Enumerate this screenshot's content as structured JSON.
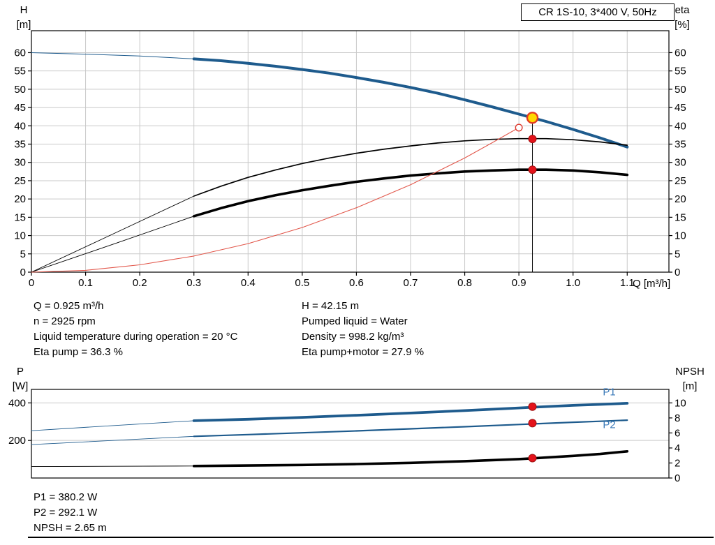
{
  "header": {
    "title_box": "CR 1S-10, 3*400 V, 50Hz"
  },
  "colors": {
    "curve_blue": "#1e5b8d",
    "label_blue": "#3a79b8",
    "curve_black": "#000000",
    "curve_red": "#e2574b",
    "dot_red": "#e3131b",
    "dot_red_edge": "#9c1111",
    "duty_yellow": "#ffd800",
    "duty_ring": "#e23b24",
    "grid": "#c9c9c9",
    "axis": "#000000"
  },
  "info": {
    "left": [
      "Q = 0.925 m³/h",
      "n = 2925 rpm",
      "Liquid temperature during operation = 20 °C",
      "Eta pump = 36.3 %"
    ],
    "right": [
      "H = 42.15 m",
      "Pumped liquid = Water",
      "Density = 998.2 kg/m³",
      "Eta pump+motor = 27.9 %"
    ],
    "bottom": [
      "P1 = 380.2 W",
      "P2 = 292.1 W",
      "NPSH = 2.65 m"
    ]
  },
  "chart_data": [
    {
      "type": "line",
      "title": "CR 1S-10, 3*400 V, 50Hz",
      "xlabel": "Q [m³/h]",
      "ylabel_left": [
        "H",
        "[m]"
      ],
      "ylabel_right": [
        "eta",
        "[%]"
      ],
      "xlim": [
        0,
        1.177
      ],
      "ylim": [
        0,
        66
      ],
      "right_ylim": [
        0,
        66
      ],
      "x_ticks": [
        0,
        0.1,
        0.2,
        0.3,
        0.4,
        0.5,
        0.6,
        0.7,
        0.8,
        0.9,
        1.0,
        1.1
      ],
      "x_tick_labels": [
        "0",
        "0.1",
        "0.2",
        "0.3",
        "0.4",
        "0.5",
        "0.6",
        "0.7",
        "0.8",
        "0.9",
        "1.0",
        "1.1"
      ],
      "y_ticks": [
        0,
        5,
        10,
        15,
        20,
        25,
        30,
        35,
        40,
        45,
        50,
        55,
        60
      ],
      "right_ticks": [
        0,
        5,
        10,
        15,
        20,
        25,
        30,
        35,
        40,
        45,
        50,
        55,
        60
      ],
      "grid": {
        "vertical": true,
        "horizontal": true
      },
      "series": [
        {
          "name": "h-curve-lead",
          "color": "#1e5b8d",
          "width": 1,
          "x": [
            0,
            0.1,
            0.2,
            0.3
          ],
          "y": [
            60,
            59.6,
            59.1,
            58.3
          ]
        },
        {
          "name": "h-curve",
          "color": "#1e5b8d",
          "width": 4,
          "x": [
            0.3,
            0.35,
            0.4,
            0.45,
            0.5,
            0.55,
            0.6,
            0.65,
            0.7,
            0.75,
            0.8,
            0.85,
            0.9,
            0.925,
            0.95,
            1.0,
            1.05,
            1.1
          ],
          "y": [
            58.3,
            57.8,
            57.1,
            56.3,
            55.4,
            54.4,
            53.2,
            51.9,
            50.5,
            48.9,
            47.1,
            45.2,
            43.2,
            42.2,
            41.2,
            39.0,
            36.7,
            34.2
          ]
        },
        {
          "name": "eta-pump-curve-lead",
          "color": "#000000",
          "width": 0.9,
          "x": [
            0,
            0.15,
            0.3
          ],
          "y": [
            0,
            10.4,
            20.8
          ]
        },
        {
          "name": "eta-pump-curve",
          "color": "#000000",
          "width": 1.7,
          "x": [
            0.3,
            0.35,
            0.4,
            0.45,
            0.5,
            0.55,
            0.6,
            0.65,
            0.7,
            0.75,
            0.8,
            0.85,
            0.9,
            0.95,
            1.0,
            1.05,
            1.1
          ],
          "y": [
            20.8,
            23.5,
            25.9,
            27.9,
            29.7,
            31.2,
            32.5,
            33.6,
            34.5,
            35.3,
            35.9,
            36.3,
            36.5,
            36.5,
            36.2,
            35.6,
            34.7
          ]
        },
        {
          "name": "eta-pump-motor-curve-lead",
          "color": "#000000",
          "width": 0.9,
          "x": [
            0,
            0.15,
            0.3
          ],
          "y": [
            0,
            7.6,
            15.3
          ]
        },
        {
          "name": "eta-pump-motor-curve",
          "color": "#000000",
          "width": 3.6,
          "x": [
            0.3,
            0.35,
            0.4,
            0.45,
            0.5,
            0.55,
            0.6,
            0.65,
            0.7,
            0.75,
            0.8,
            0.85,
            0.9,
            0.95,
            1.0,
            1.05,
            1.1
          ],
          "y": [
            15.3,
            17.5,
            19.4,
            21.0,
            22.4,
            23.6,
            24.7,
            25.6,
            26.4,
            27.0,
            27.5,
            27.8,
            28.0,
            28.0,
            27.8,
            27.3,
            26.6
          ]
        },
        {
          "name": "system-curve",
          "color": "#e2574b",
          "width": 1.1,
          "x": [
            0,
            0.1,
            0.2,
            0.3,
            0.4,
            0.5,
            0.6,
            0.7,
            0.8,
            0.85,
            0.9
          ],
          "y": [
            0,
            0.5,
            2.0,
            4.4,
            7.8,
            12.2,
            17.6,
            23.9,
            31.2,
            35.3,
            39.5
          ]
        }
      ],
      "vline": {
        "x": 0.925,
        "y0": 0,
        "y1": 42.2
      },
      "markers": [
        {
          "name": "requested-duty-marker",
          "x": 0.9,
          "y": 39.5,
          "r": 4.8,
          "fill": "#ffffff",
          "stroke": "#de3b30",
          "sw": 1.4,
          "interactable": false
        },
        {
          "name": "duty-point-marker",
          "x": 0.925,
          "y": 42.2,
          "r": 7.5,
          "fill": "#ffd800",
          "stroke": "#e23b24",
          "sw": 2.4,
          "interactable": true
        },
        {
          "name": "eta-pump-dot",
          "x": 0.925,
          "y": 36.4,
          "r": 5.5,
          "fill": "#e3131b",
          "stroke": "#9c1111",
          "sw": 1,
          "interactable": false
        },
        {
          "name": "eta-pump-motor-dot",
          "x": 0.925,
          "y": 28.0,
          "r": 5.5,
          "fill": "#e3131b",
          "stroke": "#9c1111",
          "sw": 1,
          "interactable": false
        }
      ],
      "labels": []
    },
    {
      "type": "line",
      "title": "",
      "xlabel": "",
      "ylabel_left": [
        "P",
        "[W]"
      ],
      "ylabel_right": [
        "NPSH",
        "[m]"
      ],
      "xlim": [
        0,
        1.177
      ],
      "ylim": [
        0,
        472
      ],
      "right_ylim": [
        0,
        11.8
      ],
      "x_ticks": [],
      "x_tick_labels": [],
      "y_ticks": [
        200,
        400
      ],
      "right_ticks": [
        0,
        2,
        4,
        6,
        8,
        10
      ],
      "grid": {
        "vertical": false,
        "horizontal": true
      },
      "series": [
        {
          "name": "p1-curve-lead",
          "color": "#1e5b8d",
          "width": 0.9,
          "x": [
            0,
            0.15,
            0.3
          ],
          "y": [
            252,
            279,
            305
          ]
        },
        {
          "name": "p1-curve",
          "color": "#1e5b8d",
          "width": 3.8,
          "x": [
            0.3,
            0.4,
            0.5,
            0.6,
            0.7,
            0.8,
            0.9,
            0.925,
            1.0,
            1.05,
            1.1
          ],
          "y": [
            305,
            313,
            323,
            334,
            346,
            359,
            373,
            377,
            387,
            392,
            398
          ]
        },
        {
          "name": "p2-curve-lead",
          "color": "#1e5b8d",
          "width": 0.9,
          "x": [
            0,
            0.15,
            0.3
          ],
          "y": [
            178,
            200,
            222
          ]
        },
        {
          "name": "p2-curve",
          "color": "#1e5b8d",
          "width": 2.2,
          "x": [
            0.3,
            0.4,
            0.5,
            0.6,
            0.7,
            0.8,
            0.9,
            0.925,
            1.0,
            1.05,
            1.1
          ],
          "y": [
            222,
            231,
            241,
            251,
            262,
            273,
            285,
            288,
            297,
            302,
            308
          ]
        },
        {
          "name": "npsh-curve-lead",
          "color": "#000000",
          "width": 0.9,
          "axis": "right",
          "x": [
            0,
            0.15,
            0.3
          ],
          "y": [
            1.52,
            1.56,
            1.6
          ]
        },
        {
          "name": "npsh-curve",
          "color": "#000000",
          "width": 3.6,
          "axis": "right",
          "x": [
            0.3,
            0.4,
            0.5,
            0.6,
            0.7,
            0.8,
            0.9,
            0.925,
            1.0,
            1.05,
            1.1
          ],
          "y": [
            1.6,
            1.66,
            1.74,
            1.86,
            2.02,
            2.24,
            2.52,
            2.62,
            2.95,
            3.2,
            3.55
          ]
        }
      ],
      "markers": [
        {
          "name": "p1-dot",
          "x": 0.925,
          "y": 380.2,
          "r": 5.5,
          "fill": "#e3131b",
          "stroke": "#9c1111",
          "sw": 1,
          "interactable": false
        },
        {
          "name": "p2-dot",
          "x": 0.925,
          "y": 292.1,
          "r": 5.5,
          "fill": "#e3131b",
          "stroke": "#9c1111",
          "sw": 1,
          "interactable": false
        },
        {
          "name": "npsh-dot",
          "x": 0.925,
          "y": 2.65,
          "r": 5.5,
          "fill": "#e3131b",
          "stroke": "#9c1111",
          "sw": 1,
          "axis": "right",
          "interactable": false
        }
      ],
      "labels": [
        {
          "text": "P1",
          "x": 1.055,
          "y": 440,
          "color": "#3a79b8"
        },
        {
          "text": "P2",
          "x": 1.055,
          "y": 266,
          "color": "#3a79b8"
        }
      ]
    }
  ]
}
